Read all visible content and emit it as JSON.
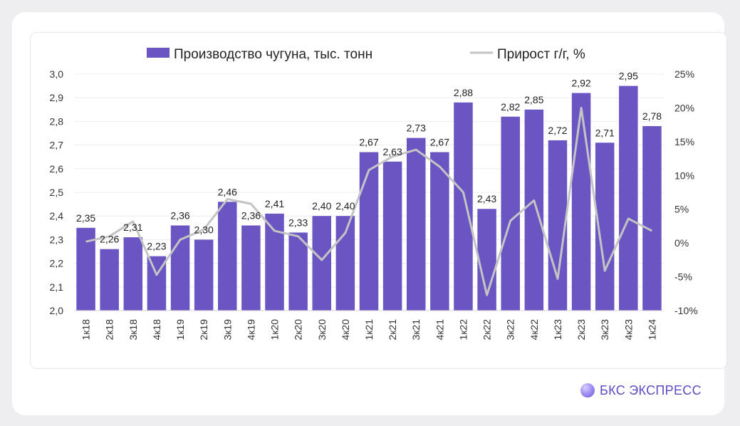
{
  "chart_data": {
    "type": "bar",
    "categories": [
      "1к18",
      "2к18",
      "3к18",
      "4к18",
      "1к19",
      "2к19",
      "3к19",
      "4к19",
      "1к20",
      "2к20",
      "3к20",
      "4к20",
      "1к21",
      "2к21",
      "3к21",
      "4к21",
      "1к22",
      "2к22",
      "3к22",
      "4к22",
      "1к23",
      "2к23",
      "3к23",
      "4к23",
      "1к24"
    ],
    "series": [
      {
        "name": "Производство чугуна, тыс. тонн",
        "type": "bar",
        "axis": "left",
        "color": "#6a55c2",
        "values": [
          2.35,
          2.26,
          2.31,
          2.23,
          2.36,
          2.3,
          2.46,
          2.36,
          2.41,
          2.33,
          2.4,
          2.4,
          2.67,
          2.63,
          2.73,
          2.67,
          2.88,
          2.43,
          2.82,
          2.85,
          2.72,
          2.92,
          2.71,
          2.95,
          2.78
        ],
        "labels": [
          "2,35",
          "2,26",
          "2,31",
          "2,23",
          "2,36",
          "2,30",
          "2,46",
          "2,36",
          "2,41",
          "2,33",
          "2,40",
          "2,40",
          "2,67",
          "2,63",
          "2,73",
          "2,67",
          "2,88",
          "2,43",
          "2,82",
          "2,85",
          "2,72",
          "2,92",
          "2,71",
          "2,95",
          "2,78"
        ]
      },
      {
        "name": "Прирост г/г, %",
        "type": "line",
        "axis": "right",
        "color": "#c4c4c4",
        "values": [
          0.2,
          1.0,
          3.2,
          -4.7,
          0.5,
          2.0,
          6.5,
          5.8,
          1.8,
          1.0,
          -2.5,
          1.5,
          10.8,
          12.8,
          13.8,
          11.3,
          7.5,
          -7.7,
          3.3,
          6.3,
          -5.3,
          20.0,
          -4.1,
          3.6,
          1.8
        ]
      }
    ],
    "y_left": {
      "min": 2.0,
      "max": 3.0,
      "ticks": [
        "2,0",
        "2,1",
        "2,2",
        "2,3",
        "2,4",
        "2,5",
        "2,6",
        "2,7",
        "2,8",
        "2,9",
        "3,0"
      ]
    },
    "y_right": {
      "min": -10,
      "max": 25,
      "ticks": [
        "-10%",
        "-5%",
        "0%",
        "5%",
        "10%",
        "15%",
        "20%",
        "25%"
      ]
    },
    "grid": true,
    "legend_position": "top"
  },
  "brand": {
    "name": "БКС ЭКСПРЕСС"
  }
}
